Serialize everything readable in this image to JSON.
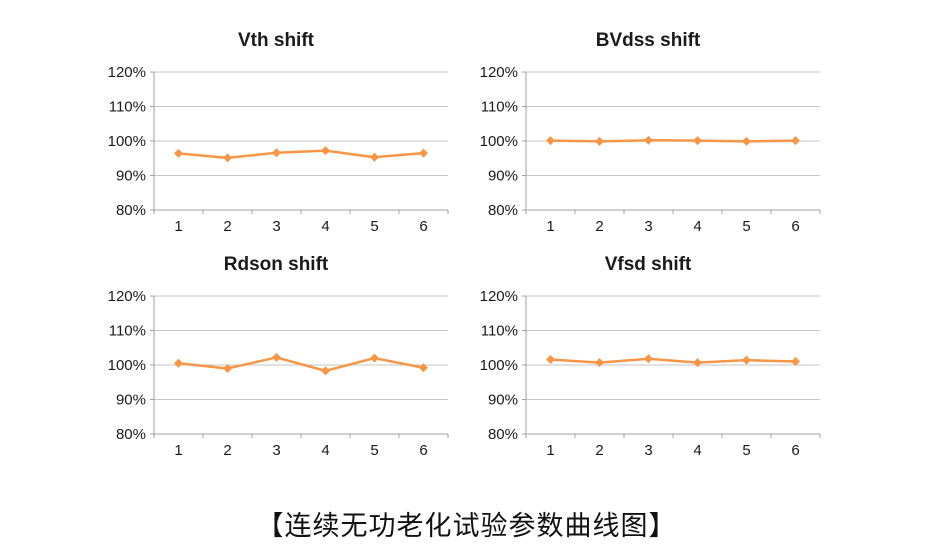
{
  "figure": {
    "caption": "【连续无功老化试验参数曲线图】"
  },
  "colors": {
    "line": "#F79646",
    "grid": "#C6C6C6",
    "axis": "#A0A0A0",
    "text": "#1a1a1a"
  },
  "chart_data": [
    {
      "type": "line",
      "title": "Vth shift",
      "categories": [
        "1",
        "2",
        "3",
        "4",
        "5",
        "6"
      ],
      "values": [
        96.4,
        95.1,
        96.6,
        97.2,
        95.3,
        96.5
      ],
      "ylim": [
        80,
        120
      ],
      "yticks": [
        80,
        90,
        100,
        110,
        120
      ],
      "ytick_suffix": "%",
      "marker": "diamond",
      "grid": "horizontal",
      "legend": "none"
    },
    {
      "type": "line",
      "title": "BVdss shift",
      "categories": [
        "1",
        "2",
        "3",
        "4",
        "5",
        "6"
      ],
      "values": [
        100.1,
        99.9,
        100.2,
        100.1,
        99.9,
        100.1
      ],
      "ylim": [
        80,
        120
      ],
      "yticks": [
        80,
        90,
        100,
        110,
        120
      ],
      "ytick_suffix": "%",
      "marker": "diamond",
      "grid": "horizontal",
      "legend": "none"
    },
    {
      "type": "line",
      "title": "Rdson shift",
      "categories": [
        "1",
        "2",
        "3",
        "4",
        "5",
        "6"
      ],
      "values": [
        100.5,
        99.0,
        102.2,
        98.3,
        102.0,
        99.2
      ],
      "ylim": [
        80,
        120
      ],
      "yticks": [
        80,
        90,
        100,
        110,
        120
      ],
      "ytick_suffix": "%",
      "marker": "diamond",
      "grid": "horizontal",
      "legend": "none"
    },
    {
      "type": "line",
      "title": "Vfsd shift",
      "categories": [
        "1",
        "2",
        "3",
        "4",
        "5",
        "6"
      ],
      "values": [
        101.6,
        100.7,
        101.8,
        100.7,
        101.4,
        101.0
      ],
      "ylim": [
        80,
        120
      ],
      "yticks": [
        80,
        90,
        100,
        110,
        120
      ],
      "ytick_suffix": "%",
      "marker": "diamond",
      "grid": "horizontal",
      "legend": "none"
    }
  ]
}
